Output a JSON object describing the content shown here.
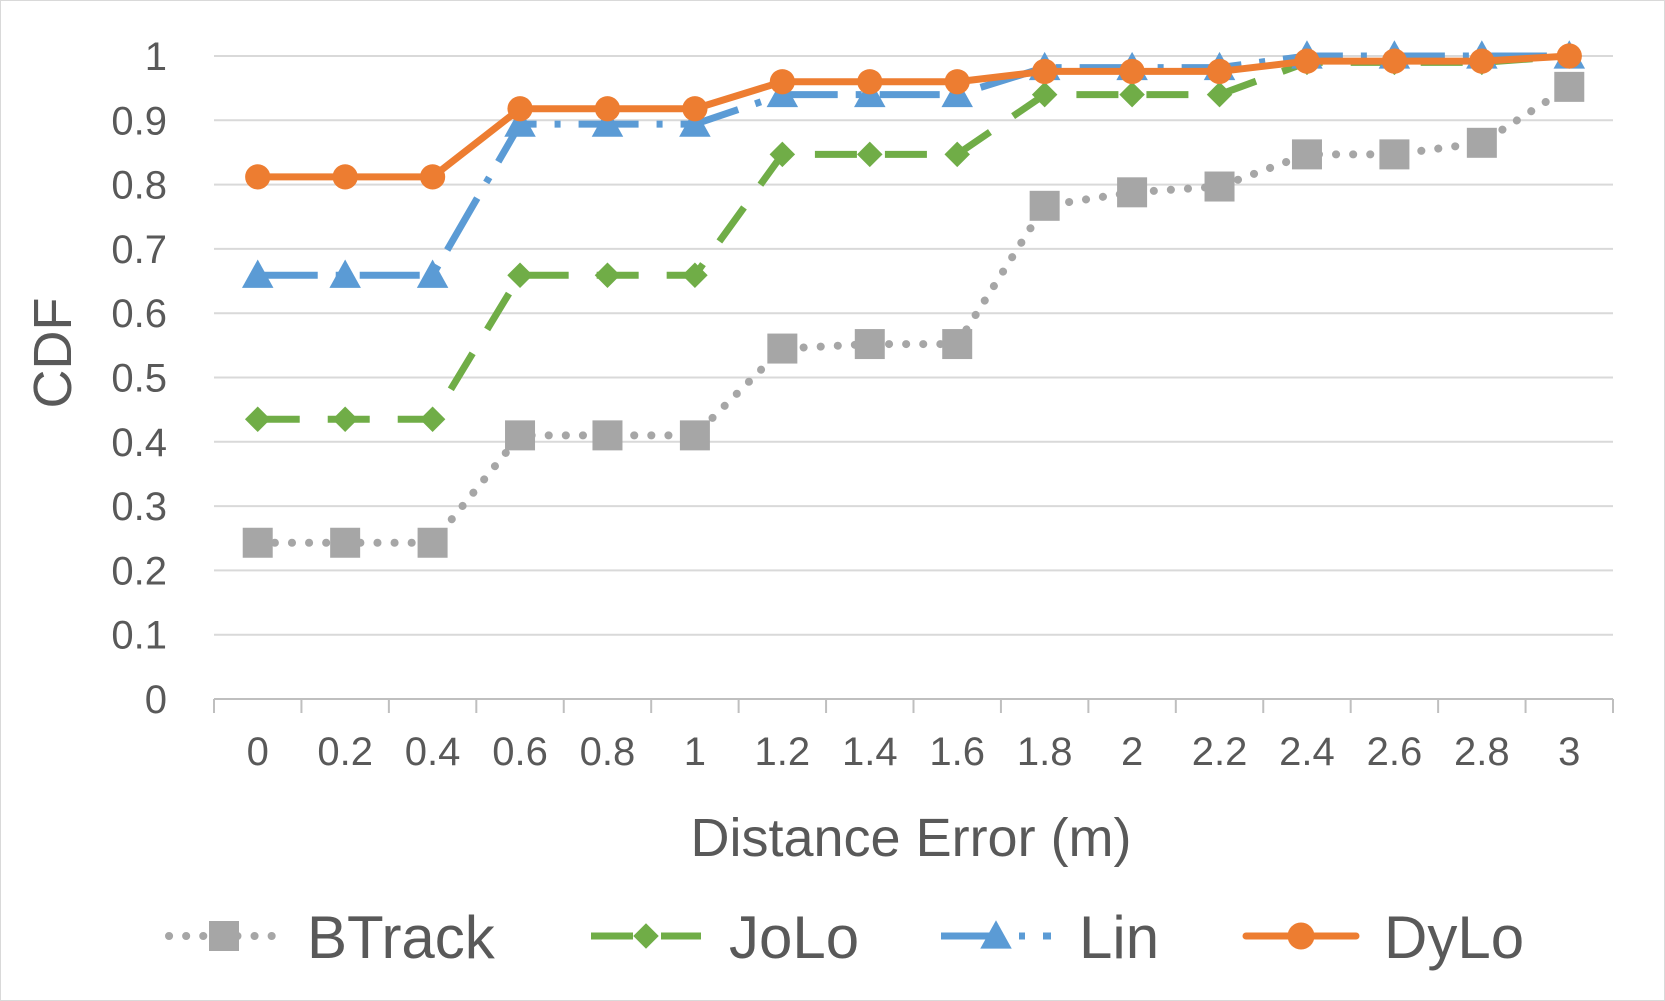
{
  "chart_data": {
    "type": "line",
    "categories": [
      "0",
      "0.2",
      "0.4",
      "0.6",
      "0.8",
      "1",
      "1.2",
      "1.4",
      "1.6",
      "1.8",
      "2",
      "2.2",
      "2.4",
      "2.6",
      "2.8",
      "3"
    ],
    "xlabel": "Distance Error (m)",
    "ylabel": "CDF",
    "ylim": [
      0,
      1
    ],
    "yticks": [
      "0",
      "0.1",
      "0.2",
      "0.3",
      "0.4",
      "0.5",
      "0.6",
      "0.7",
      "0.8",
      "0.9",
      "1"
    ],
    "grid": "horizontal",
    "legend_position": "bottom",
    "series": [
      {
        "name": "BTrack",
        "color": "#a6a6a6",
        "line_style": "dotted",
        "marker": "square",
        "values": [
          0.243,
          0.243,
          0.243,
          0.41,
          0.41,
          0.41,
          0.545,
          0.552,
          0.552,
          0.767,
          0.788,
          0.797,
          0.847,
          0.847,
          0.865,
          0.952
        ]
      },
      {
        "name": "JoLo",
        "color": "#70ad47",
        "line_style": "dashed",
        "marker": "diamond",
        "values": [
          0.435,
          0.435,
          0.435,
          0.659,
          0.659,
          0.659,
          0.847,
          0.847,
          0.847,
          0.94,
          0.94,
          0.94,
          0.99,
          0.99,
          0.99,
          1.0
        ]
      },
      {
        "name": "Lin",
        "color": "#5b9bd5",
        "line_style": "dash-dot",
        "marker": "triangle",
        "values": [
          0.659,
          0.659,
          0.659,
          0.894,
          0.894,
          0.894,
          0.94,
          0.94,
          0.94,
          0.982,
          0.982,
          0.982,
          1.0,
          1.0,
          1.0,
          1.0
        ]
      },
      {
        "name": "DyLo",
        "color": "#ed7d31",
        "line_style": "solid",
        "marker": "circle",
        "values": [
          0.812,
          0.812,
          0.812,
          0.918,
          0.918,
          0.918,
          0.96,
          0.96,
          0.96,
          0.976,
          0.976,
          0.976,
          0.992,
          0.992,
          0.992,
          1.0
        ]
      }
    ]
  }
}
